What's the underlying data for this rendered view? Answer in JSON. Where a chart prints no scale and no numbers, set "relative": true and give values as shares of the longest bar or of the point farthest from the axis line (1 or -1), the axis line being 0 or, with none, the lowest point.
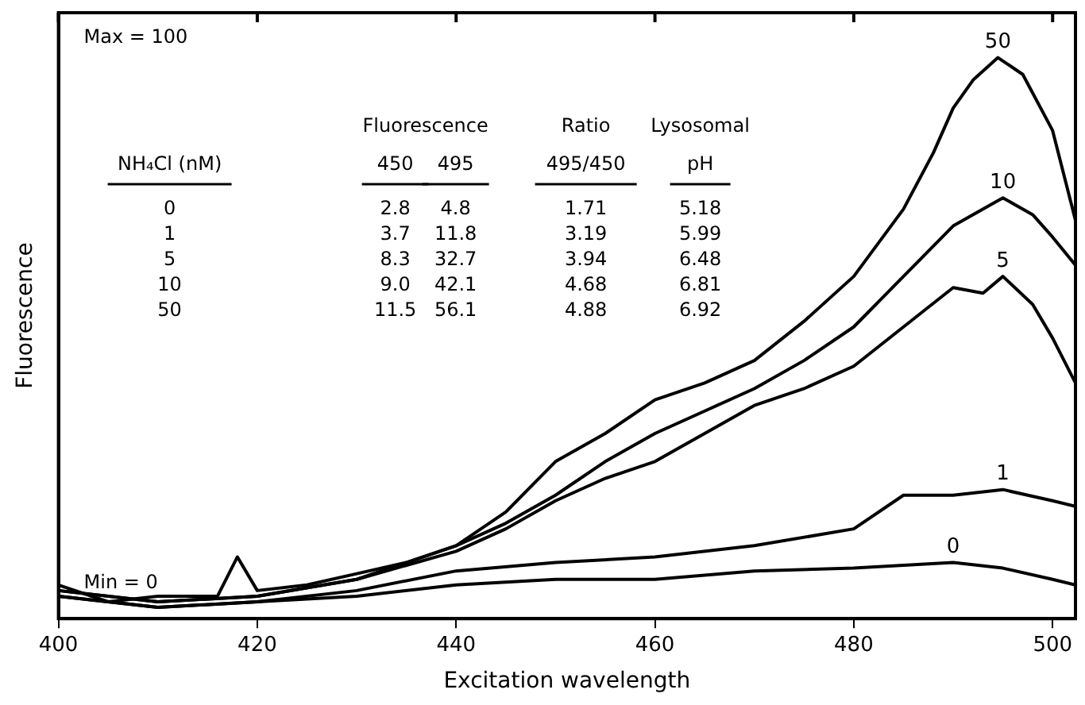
{
  "chart_data": {
    "type": "line",
    "xlabel": "Excitation wavelength",
    "ylabel": "Fluorescence",
    "relative": true,
    "xlim": [
      400,
      502.3
    ],
    "xticks": [
      400,
      420,
      440,
      460,
      480,
      500
    ],
    "grid": false,
    "legend": false,
    "marker": "none",
    "line_style": "solid",
    "annotations": [
      "Max = 100",
      "Min = 0",
      "Fluorescence",
      "Ratio",
      "Lysosomal",
      "NH₄Cl (nM)",
      "450",
      "495",
      "495/450",
      "pH",
      "0",
      "2.8",
      "4.8",
      "1.71",
      "5.18",
      "1",
      "3.7",
      "11.8",
      "3.19",
      "5.99",
      "5",
      "8.3",
      "32.7",
      "3.94",
      "6.48",
      "10",
      "9.0",
      "42.1",
      "4.68",
      "6.81",
      "50",
      "11.5",
      "56.1",
      "4.88",
      "6.92"
    ],
    "series": [
      {
        "name": "50",
        "color": "#000000",
        "x": [
          400,
          405,
          410,
          416,
          418,
          420,
          425,
          430,
          435,
          440,
          445,
          450,
          455,
          460,
          465,
          470,
          475,
          480,
          485,
          488,
          490,
          492,
          494.5,
          497,
          500,
          502.3
        ],
        "values": [
          0.06,
          0.03,
          0.04,
          0.04,
          0.11,
          0.05,
          0.06,
          0.08,
          0.1,
          0.13,
          0.19,
          0.28,
          0.33,
          0.39,
          0.42,
          0.46,
          0.53,
          0.61,
          0.73,
          0.83,
          0.91,
          0.96,
          1.0,
          0.97,
          0.87,
          0.71
        ]
      },
      {
        "name": "10",
        "color": "#000000",
        "x": [
          400,
          410,
          420,
          430,
          440,
          445,
          450,
          455,
          460,
          465,
          470,
          475,
          480,
          485,
          490,
          495,
          498,
          500,
          502.3
        ],
        "values": [
          0.05,
          0.03,
          0.04,
          0.07,
          0.13,
          0.17,
          0.22,
          0.28,
          0.33,
          0.37,
          0.41,
          0.46,
          0.52,
          0.61,
          0.7,
          0.75,
          0.72,
          0.68,
          0.63
        ]
      },
      {
        "name": "5",
        "color": "#000000",
        "x": [
          400,
          410,
          420,
          430,
          440,
          445,
          450,
          455,
          460,
          465,
          470,
          475,
          480,
          485,
          490,
          493,
          495,
          498,
          500,
          502.3
        ],
        "values": [
          0.05,
          0.03,
          0.04,
          0.07,
          0.12,
          0.16,
          0.21,
          0.25,
          0.28,
          0.33,
          0.38,
          0.41,
          0.45,
          0.52,
          0.59,
          0.58,
          0.61,
          0.56,
          0.5,
          0.42
        ]
      },
      {
        "name": "1",
        "color": "#000000",
        "x": [
          400,
          410,
          420,
          430,
          440,
          450,
          460,
          470,
          480,
          485,
          490,
          495,
          500,
          502.3
        ],
        "values": [
          0.04,
          0.02,
          0.03,
          0.05,
          0.085,
          0.1,
          0.11,
          0.13,
          0.16,
          0.22,
          0.22,
          0.23,
          0.21,
          0.2
        ]
      },
      {
        "name": "0",
        "color": "#000000",
        "x": [
          400,
          410,
          420,
          430,
          440,
          450,
          460,
          470,
          480,
          490,
          495,
          500,
          502.3
        ],
        "values": [
          0.04,
          0.02,
          0.03,
          0.04,
          0.06,
          0.07,
          0.07,
          0.085,
          0.09,
          0.1,
          0.09,
          0.07,
          0.06
        ]
      }
    ]
  }
}
